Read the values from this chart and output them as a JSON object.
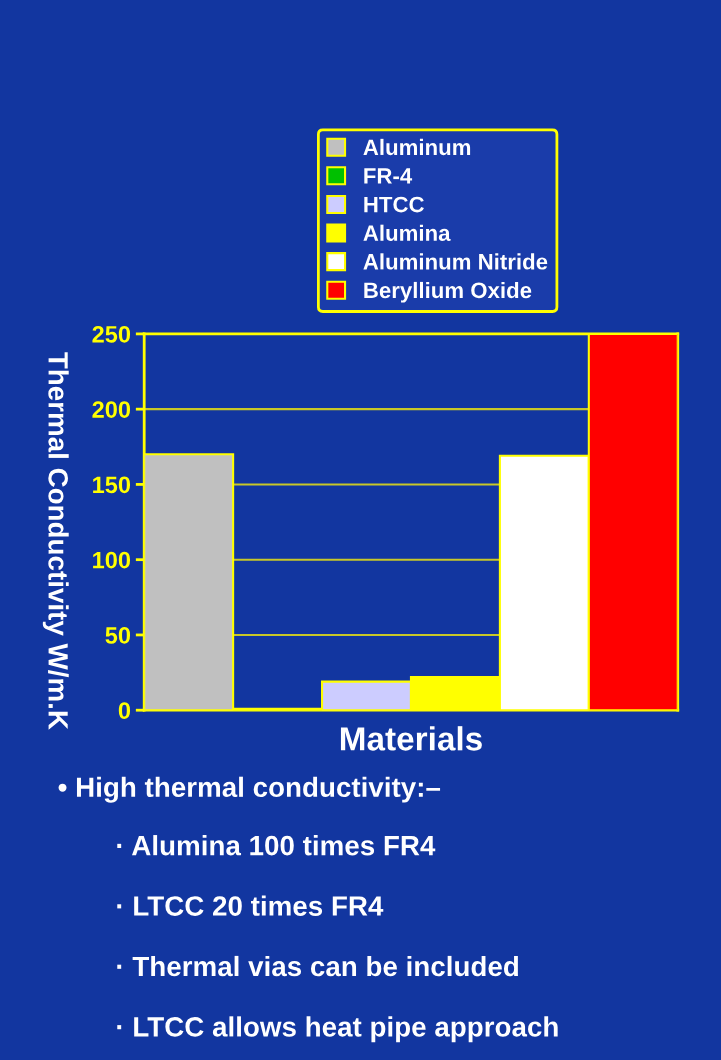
{
  "chart_data": {
    "type": "bar",
    "xlabel": "Materials",
    "ylabel": "Thermal Conductivity W/m.K",
    "categories": [
      null,
      null,
      null,
      null,
      null,
      null
    ],
    "series": [
      {
        "name": "Aluminum",
        "color": "#c0c0c0",
        "values": [
          170,
          null,
          null,
          null,
          null,
          null
        ]
      },
      {
        "name": "FR-4",
        "color": "#00c000",
        "values": [
          null,
          1,
          null,
          null,
          null,
          null
        ]
      },
      {
        "name": "HTCC",
        "color": "#ccccff",
        "values": [
          null,
          null,
          19,
          null,
          null,
          null
        ]
      },
      {
        "name": "Alumina",
        "color": "#ffff00",
        "values": [
          null,
          null,
          null,
          22,
          null,
          null
        ]
      },
      {
        "name": "Aluminum Nitride",
        "color": "#ffffff",
        "values": [
          null,
          null,
          null,
          null,
          169,
          null
        ]
      },
      {
        "name": "Beryllium Oxide",
        "color": "#ff0000",
        "values": [
          null,
          null,
          null,
          null,
          null,
          250
        ]
      }
    ],
    "ylim": [
      0,
      250
    ],
    "yticks": [
      0,
      50,
      100,
      150,
      200,
      250
    ],
    "grid": "y",
    "legend": "top",
    "annotations": [
      "• High thermal conductivity:–",
      "· Alumina 100 times FR4",
      "· LTCC 20 times FR4",
      "· Thermal vias can be included",
      "· LTCC allows heat pipe approach"
    ]
  }
}
